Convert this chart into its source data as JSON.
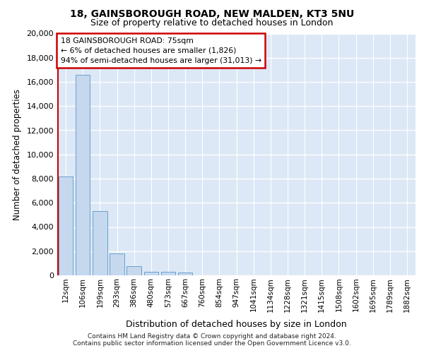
{
  "title1": "18, GAINSBOROUGH ROAD, NEW MALDEN, KT3 5NU",
  "title2": "Size of property relative to detached houses in London",
  "xlabel": "Distribution of detached houses by size in London",
  "ylabel": "Number of detached properties",
  "categories": [
    "12sqm",
    "106sqm",
    "199sqm",
    "293sqm",
    "386sqm",
    "480sqm",
    "573sqm",
    "667sqm",
    "760sqm",
    "854sqm",
    "947sqm",
    "1041sqm",
    "1134sqm",
    "1228sqm",
    "1321sqm",
    "1415sqm",
    "1508sqm",
    "1602sqm",
    "1695sqm",
    "1789sqm",
    "1882sqm"
  ],
  "values": [
    8200,
    16600,
    5300,
    1800,
    750,
    320,
    270,
    250,
    0,
    0,
    0,
    0,
    0,
    0,
    0,
    0,
    0,
    0,
    0,
    0,
    0
  ],
  "bar_color": "#c5d8ee",
  "bar_edge_color": "#6aa0d0",
  "annotation_box_facecolor": "#ffffff",
  "annotation_border_color": "#cc0000",
  "vline_color": "#cc0000",
  "annotation_title": "18 GAINSBOROUGH ROAD: 75sqm",
  "annotation_line1": "← 6% of detached houses are smaller (1,826)",
  "annotation_line2": "94% of semi-detached houses are larger (31,013) →",
  "vline_x_index": -0.45,
  "ylim": [
    0,
    20000
  ],
  "yticks": [
    0,
    2000,
    4000,
    6000,
    8000,
    10000,
    12000,
    14000,
    16000,
    18000,
    20000
  ],
  "background_color": "#dce8f5",
  "grid_color": "#ffffff",
  "footer1": "Contains HM Land Registry data © Crown copyright and database right 2024.",
  "footer2": "Contains public sector information licensed under the Open Government Licence v3.0."
}
